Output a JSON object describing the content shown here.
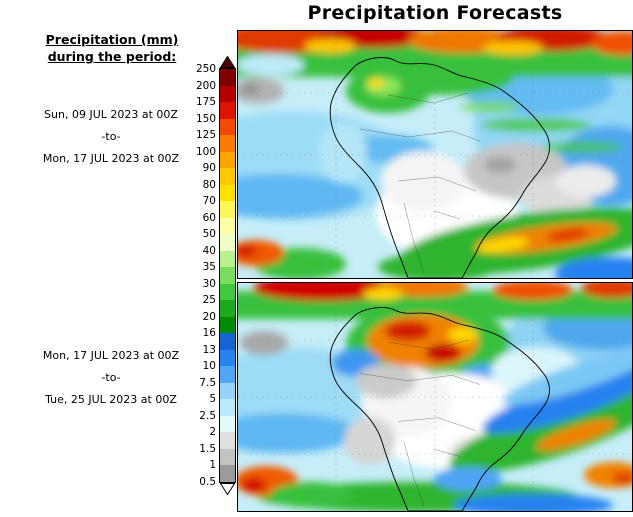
{
  "title": "Precipitation Forecasts",
  "legend": {
    "heading_line1": "Precipitation (mm)",
    "heading_line2": "during the period:",
    "ticks": [
      "250",
      "200",
      "175",
      "150",
      "125",
      "100",
      "90",
      "80",
      "70",
      "60",
      "50",
      "40",
      "35",
      "30",
      "25",
      "20",
      "16",
      "13",
      "10",
      "7.5",
      "5",
      "2.5",
      "2",
      "1.5",
      "1",
      "0.5"
    ],
    "arrow_top_color": "#4f0000",
    "arrow_bottom_color": "#ffffff",
    "segment_colors": [
      "#7f0000",
      "#b40000",
      "#dc1400",
      "#f04b00",
      "#fa7d00",
      "#ffa500",
      "#ffc800",
      "#ffe100",
      "#fff75a",
      "#ffffa5",
      "#f0ffc8",
      "#b9f08d",
      "#78dc5f",
      "#41c841",
      "#1eaa1e",
      "#008c00",
      "#1464d2",
      "#2882f0",
      "#50a5f5",
      "#96d2fa",
      "#b9ebfa",
      "#e1fafa",
      "#e0e0e0",
      "#c3c3c3",
      "#9b9b9b"
    ]
  },
  "panels": [
    {
      "start_date": "Sun, 09 JUL 2023 at 00Z",
      "separator": "-to-",
      "end_date": "Mon, 17 JUL 2023 at 00Z"
    },
    {
      "start_date": "Mon, 17 JUL 2023 at 00Z",
      "separator": "-to-",
      "end_date": "Tue, 25 JUL 2023 at 00Z"
    }
  ]
}
